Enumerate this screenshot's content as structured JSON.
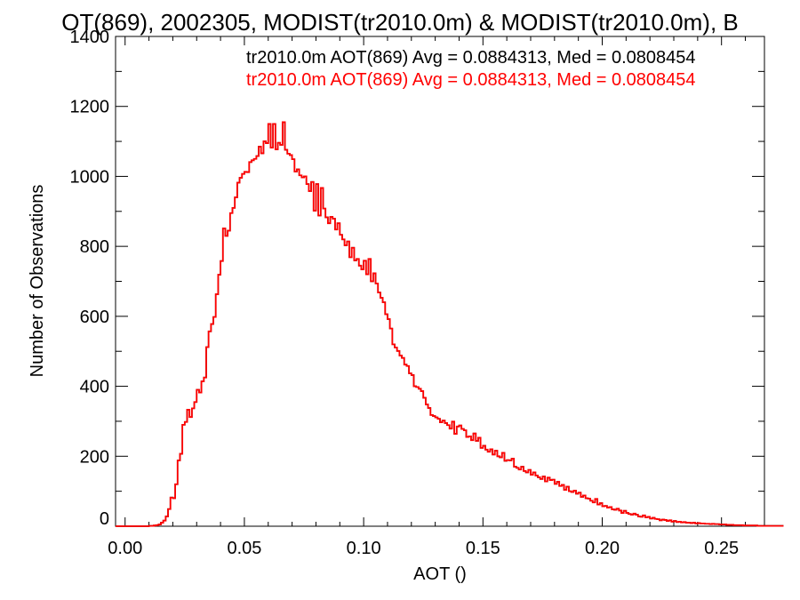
{
  "chart_data": {
    "type": "bar",
    "title": "OT(869), 2002305, MODIST(tr2010.0m) & MODIST(tr2010.0m), B",
    "xlabel": "AOT ()",
    "ylabel": "Number of Observations",
    "xlim": [
      -0.004,
      0.268
    ],
    "ylim": [
      0,
      1400
    ],
    "xticks": [
      0.0,
      0.05,
      0.1,
      0.15,
      0.2,
      0.25
    ],
    "xtick_labels": [
      "0.00",
      "0.05",
      "0.10",
      "0.15",
      "0.20",
      "0.25"
    ],
    "yticks": [
      0,
      200,
      400,
      600,
      800,
      1000,
      1200,
      1400
    ],
    "ytick_labels": [
      "0",
      "200",
      "400",
      "600",
      "800",
      "1000",
      "1200",
      "1400"
    ],
    "grid": false,
    "bin_width": 0.001,
    "x_start": -0.004,
    "series": [
      {
        "name": "tr2010.0m AOT(869) Avg = 0.0884313, Med = 0.0808454",
        "color": "#000000",
        "values": [
          0,
          0,
          0,
          0,
          0,
          0,
          0,
          0,
          0,
          0,
          0,
          0,
          0,
          0,
          1,
          1,
          2,
          3,
          5,
          10,
          16,
          28,
          49,
          82,
          80,
          120,
          188,
          207,
          290,
          298,
          333,
          312,
          337,
          355,
          390,
          382,
          414,
          425,
          512,
          557,
          578,
          598,
          663,
          719,
          758,
          851,
          830,
          845,
          895,
          910,
          940,
          982,
          996,
          1007,
          1013,
          1012,
          1041,
          1046,
          1050,
          1058,
          1085,
          1066,
          1100,
          1095,
          1150,
          1082,
          1150,
          1077,
          1096,
          1090,
          1155,
          1076,
          1065,
          1061,
          1049,
          1014,
          1020,
          1003,
          997,
          1000,
          978,
          958,
          984,
          902,
          978,
          888,
          967,
          908,
          883,
          866,
          884,
          879,
          848,
          866,
          833,
          820,
          803,
          814,
          769,
          796,
          760,
          764,
          745,
          734,
          759,
          720,
          764,
          700,
          723,
          694,
          668,
          653,
          640,
          606,
          592,
          565,
          520,
          511,
          501,
          488,
          481,
          462,
          458,
          437,
          432,
          400,
          398,
          393,
          386,
          367,
          348,
          338,
          318,
          315,
          311,
          307,
          297,
          302,
          295,
          289,
          279,
          299,
          264,
          285,
          288,
          278,
          274,
          255,
          257,
          246,
          265,
          244,
          253,
          224,
          230,
          219,
          213,
          220,
          205,
          216,
          200,
          197,
          210,
          187,
          189,
          188,
          193,
          170,
          167,
          162,
          170,
          158,
          154,
          161,
          147,
          154,
          145,
          140,
          135,
          142,
          128,
          139,
          132,
          133,
          121,
          127,
          115,
          118,
          104,
          113,
          100,
          98,
          102,
          93,
          96,
          84,
          88,
          80,
          79,
          73,
          68,
          78,
          62,
          66,
          57,
          58,
          53,
          55,
          48,
          47,
          50,
          45,
          38,
          44,
          38,
          35,
          33,
          36,
          33,
          28,
          27,
          31,
          25,
          27,
          22,
          24,
          21,
          20,
          17,
          19,
          18,
          15,
          17,
          13,
          15,
          12,
          13,
          11,
          12,
          10,
          10,
          9,
          10,
          8,
          9,
          8,
          8,
          7,
          7,
          6,
          7,
          6,
          6,
          5,
          5,
          5,
          4,
          4,
          4,
          3,
          3,
          3,
          3,
          2,
          2,
          2,
          2,
          2,
          2,
          1,
          1,
          1,
          1,
          1,
          1,
          1,
          1,
          1,
          1,
          1
        ]
      },
      {
        "name": "tr2010.0m AOT(869) Avg = 0.0884313, Med = 0.0808454",
        "color": "#ff0000",
        "values": [
          0,
          0,
          0,
          0,
          0,
          0,
          0,
          0,
          0,
          0,
          0,
          0,
          0,
          0,
          1,
          1,
          2,
          3,
          5,
          10,
          16,
          28,
          49,
          82,
          80,
          120,
          188,
          207,
          290,
          298,
          333,
          312,
          337,
          355,
          390,
          382,
          414,
          425,
          512,
          557,
          578,
          598,
          663,
          719,
          758,
          851,
          830,
          845,
          895,
          910,
          940,
          982,
          996,
          1007,
          1013,
          1012,
          1041,
          1046,
          1050,
          1058,
          1085,
          1066,
          1100,
          1095,
          1150,
          1082,
          1150,
          1077,
          1096,
          1090,
          1155,
          1076,
          1065,
          1061,
          1049,
          1014,
          1020,
          1003,
          997,
          1000,
          978,
          958,
          984,
          902,
          978,
          888,
          967,
          908,
          883,
          866,
          884,
          879,
          848,
          866,
          833,
          820,
          803,
          814,
          769,
          796,
          760,
          764,
          745,
          734,
          759,
          720,
          764,
          700,
          723,
          694,
          668,
          653,
          640,
          606,
          592,
          565,
          520,
          511,
          501,
          488,
          481,
          462,
          458,
          437,
          432,
          400,
          398,
          393,
          386,
          367,
          348,
          338,
          318,
          315,
          311,
          307,
          297,
          302,
          295,
          289,
          279,
          299,
          264,
          285,
          288,
          278,
          274,
          255,
          257,
          246,
          265,
          244,
          253,
          224,
          230,
          219,
          213,
          220,
          205,
          216,
          200,
          197,
          210,
          187,
          189,
          188,
          193,
          170,
          167,
          162,
          170,
          158,
          154,
          161,
          147,
          154,
          145,
          140,
          135,
          142,
          128,
          139,
          132,
          133,
          121,
          127,
          115,
          118,
          104,
          113,
          100,
          98,
          102,
          93,
          96,
          84,
          88,
          80,
          79,
          73,
          68,
          78,
          62,
          66,
          57,
          58,
          53,
          55,
          48,
          47,
          50,
          45,
          38,
          44,
          38,
          35,
          33,
          36,
          33,
          28,
          27,
          31,
          25,
          27,
          22,
          24,
          21,
          20,
          17,
          19,
          18,
          15,
          17,
          13,
          15,
          12,
          13,
          11,
          12,
          10,
          10,
          9,
          10,
          8,
          9,
          8,
          8,
          7,
          7,
          6,
          7,
          6,
          6,
          5,
          5,
          5,
          4,
          4,
          4,
          3,
          3,
          3,
          3,
          2,
          2,
          2,
          2,
          2,
          2,
          1,
          1,
          1,
          1,
          1,
          1,
          1,
          1,
          1,
          1,
          1
        ]
      }
    ]
  }
}
